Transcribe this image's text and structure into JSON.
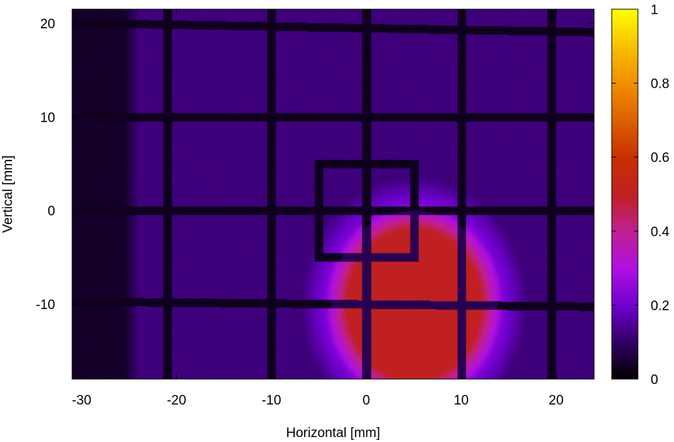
{
  "chart_data": {
    "type": "heatmap",
    "title": "",
    "xlabel": "Horizontal [mm]",
    "ylabel": "Vertical [mm]",
    "xlim": [
      -31,
      24
    ],
    "ylim": [
      -18,
      21.5
    ],
    "x_ticks": [
      -30,
      -20,
      -10,
      0,
      10,
      20
    ],
    "y_ticks": [
      -10,
      0,
      10,
      20
    ],
    "colorbar": {
      "range": [
        0,
        1
      ],
      "ticks": [
        0,
        0.2,
        0.4,
        0.6,
        0.8,
        1
      ],
      "tick_labels": [
        "0",
        "0.2",
        "0.4",
        "0.6",
        "0.8",
        "1"
      ],
      "colormap": "gnuplot-pm3d-hot"
    },
    "background_level": 0.12,
    "dark_band_left": {
      "x_from": -31,
      "x_to": -24,
      "level": 0.04
    },
    "grid_wires": {
      "vertical_x": [
        -21,
        -10,
        0,
        10,
        19.5
      ],
      "horizontal_y": [
        19.5,
        10,
        0,
        -10
      ],
      "level": 0.03
    },
    "inner_square": {
      "x_range": [
        -5,
        5
      ],
      "y_range": [
        -5,
        5
      ],
      "level": 0.03
    },
    "beam_spot": {
      "center": [
        5,
        -10
      ],
      "radius_x": 7,
      "radius_y": 8,
      "peak_level": 0.5
    },
    "grid": false
  }
}
